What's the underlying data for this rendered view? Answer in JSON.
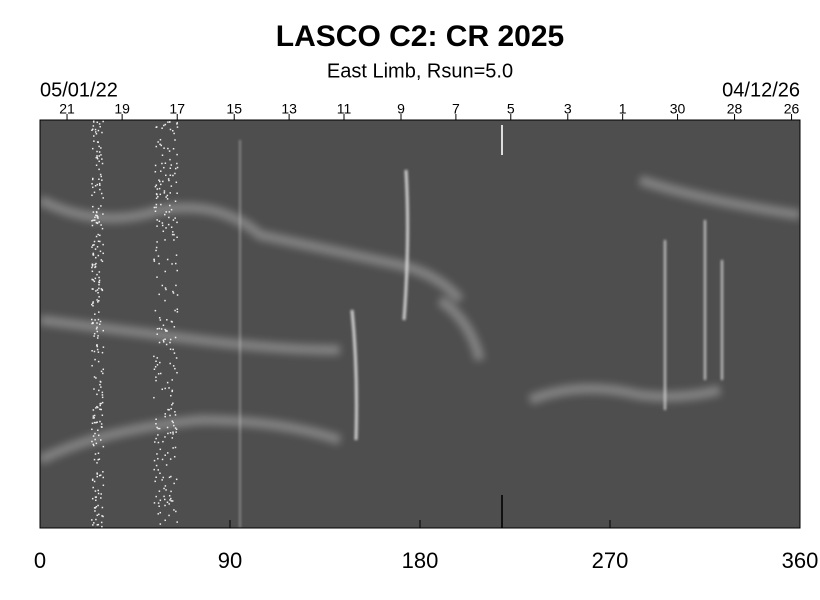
{
  "chart_data": {
    "type": "image",
    "title": "LASCO C2: CR 2025",
    "subtitle": "East Limb, Rsun=5.0",
    "start_label": "05/01/22",
    "end_label": "04/12/26",
    "xlim": [
      0,
      360
    ],
    "xticks": [
      0,
      90,
      180,
      270,
      360
    ],
    "top_ticks": [
      {
        "value": 12.8,
        "label": "21"
      },
      {
        "value": 38.9,
        "label": "19"
      },
      {
        "value": 65.0,
        "label": "17"
      },
      {
        "value": 92.0,
        "label": "15"
      },
      {
        "value": 118,
        "label": "13"
      },
      {
        "value": 144,
        "label": "11"
      },
      {
        "value": 171,
        "label": "9"
      },
      {
        "value": 197,
        "label": "7"
      },
      {
        "value": 223,
        "label": "5"
      },
      {
        "value": 250,
        "label": "3"
      },
      {
        "value": 276,
        "label": "1"
      },
      {
        "value": 302,
        "label": "30"
      },
      {
        "value": 329,
        "label": "28"
      },
      {
        "value": 356,
        "label": "26"
      }
    ]
  }
}
